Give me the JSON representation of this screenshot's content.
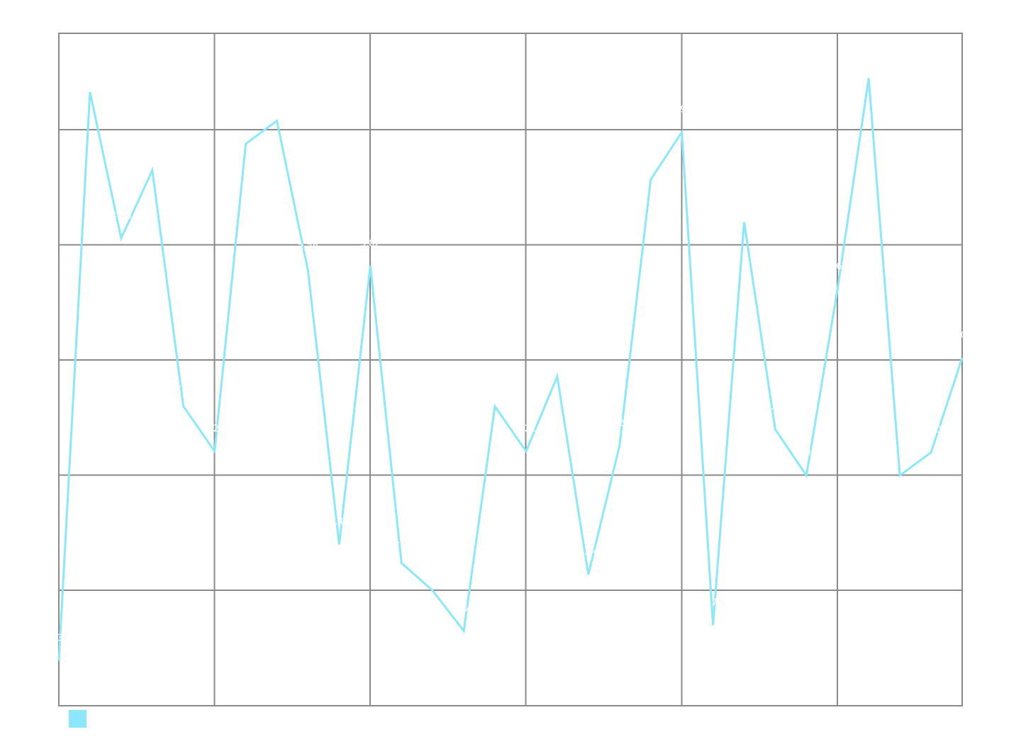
{
  "chart_data": {
    "type": "line",
    "title": "",
    "xlabel": "",
    "ylabel": "",
    "x": [
      0,
      1,
      2,
      3,
      4,
      5,
      6,
      7,
      8,
      9,
      10,
      11,
      12,
      13,
      14,
      15,
      16,
      17,
      18,
      19,
      20,
      21,
      22,
      23,
      24,
      25,
      26,
      27,
      28,
      29
    ],
    "xlim": [
      0,
      29
    ],
    "ylim": [
      0,
      5.84
    ],
    "grid": true,
    "legend": "bottom-left",
    "series": [
      {
        "color": "#8be8fb",
        "values": [
          0.39,
          5.33,
          4.06,
          4.65,
          2.6,
          2.21,
          4.88,
          5.08,
          3.78,
          1.4,
          3.82,
          1.24,
          1.0,
          0.65,
          2.6,
          2.21,
          2.86,
          1.14,
          2.26,
          4.57,
          4.98,
          0.7,
          4.2,
          2.4,
          2.0,
          3.62,
          5.45,
          2.0,
          2.2,
          3.02
        ]
      }
    ]
  }
}
